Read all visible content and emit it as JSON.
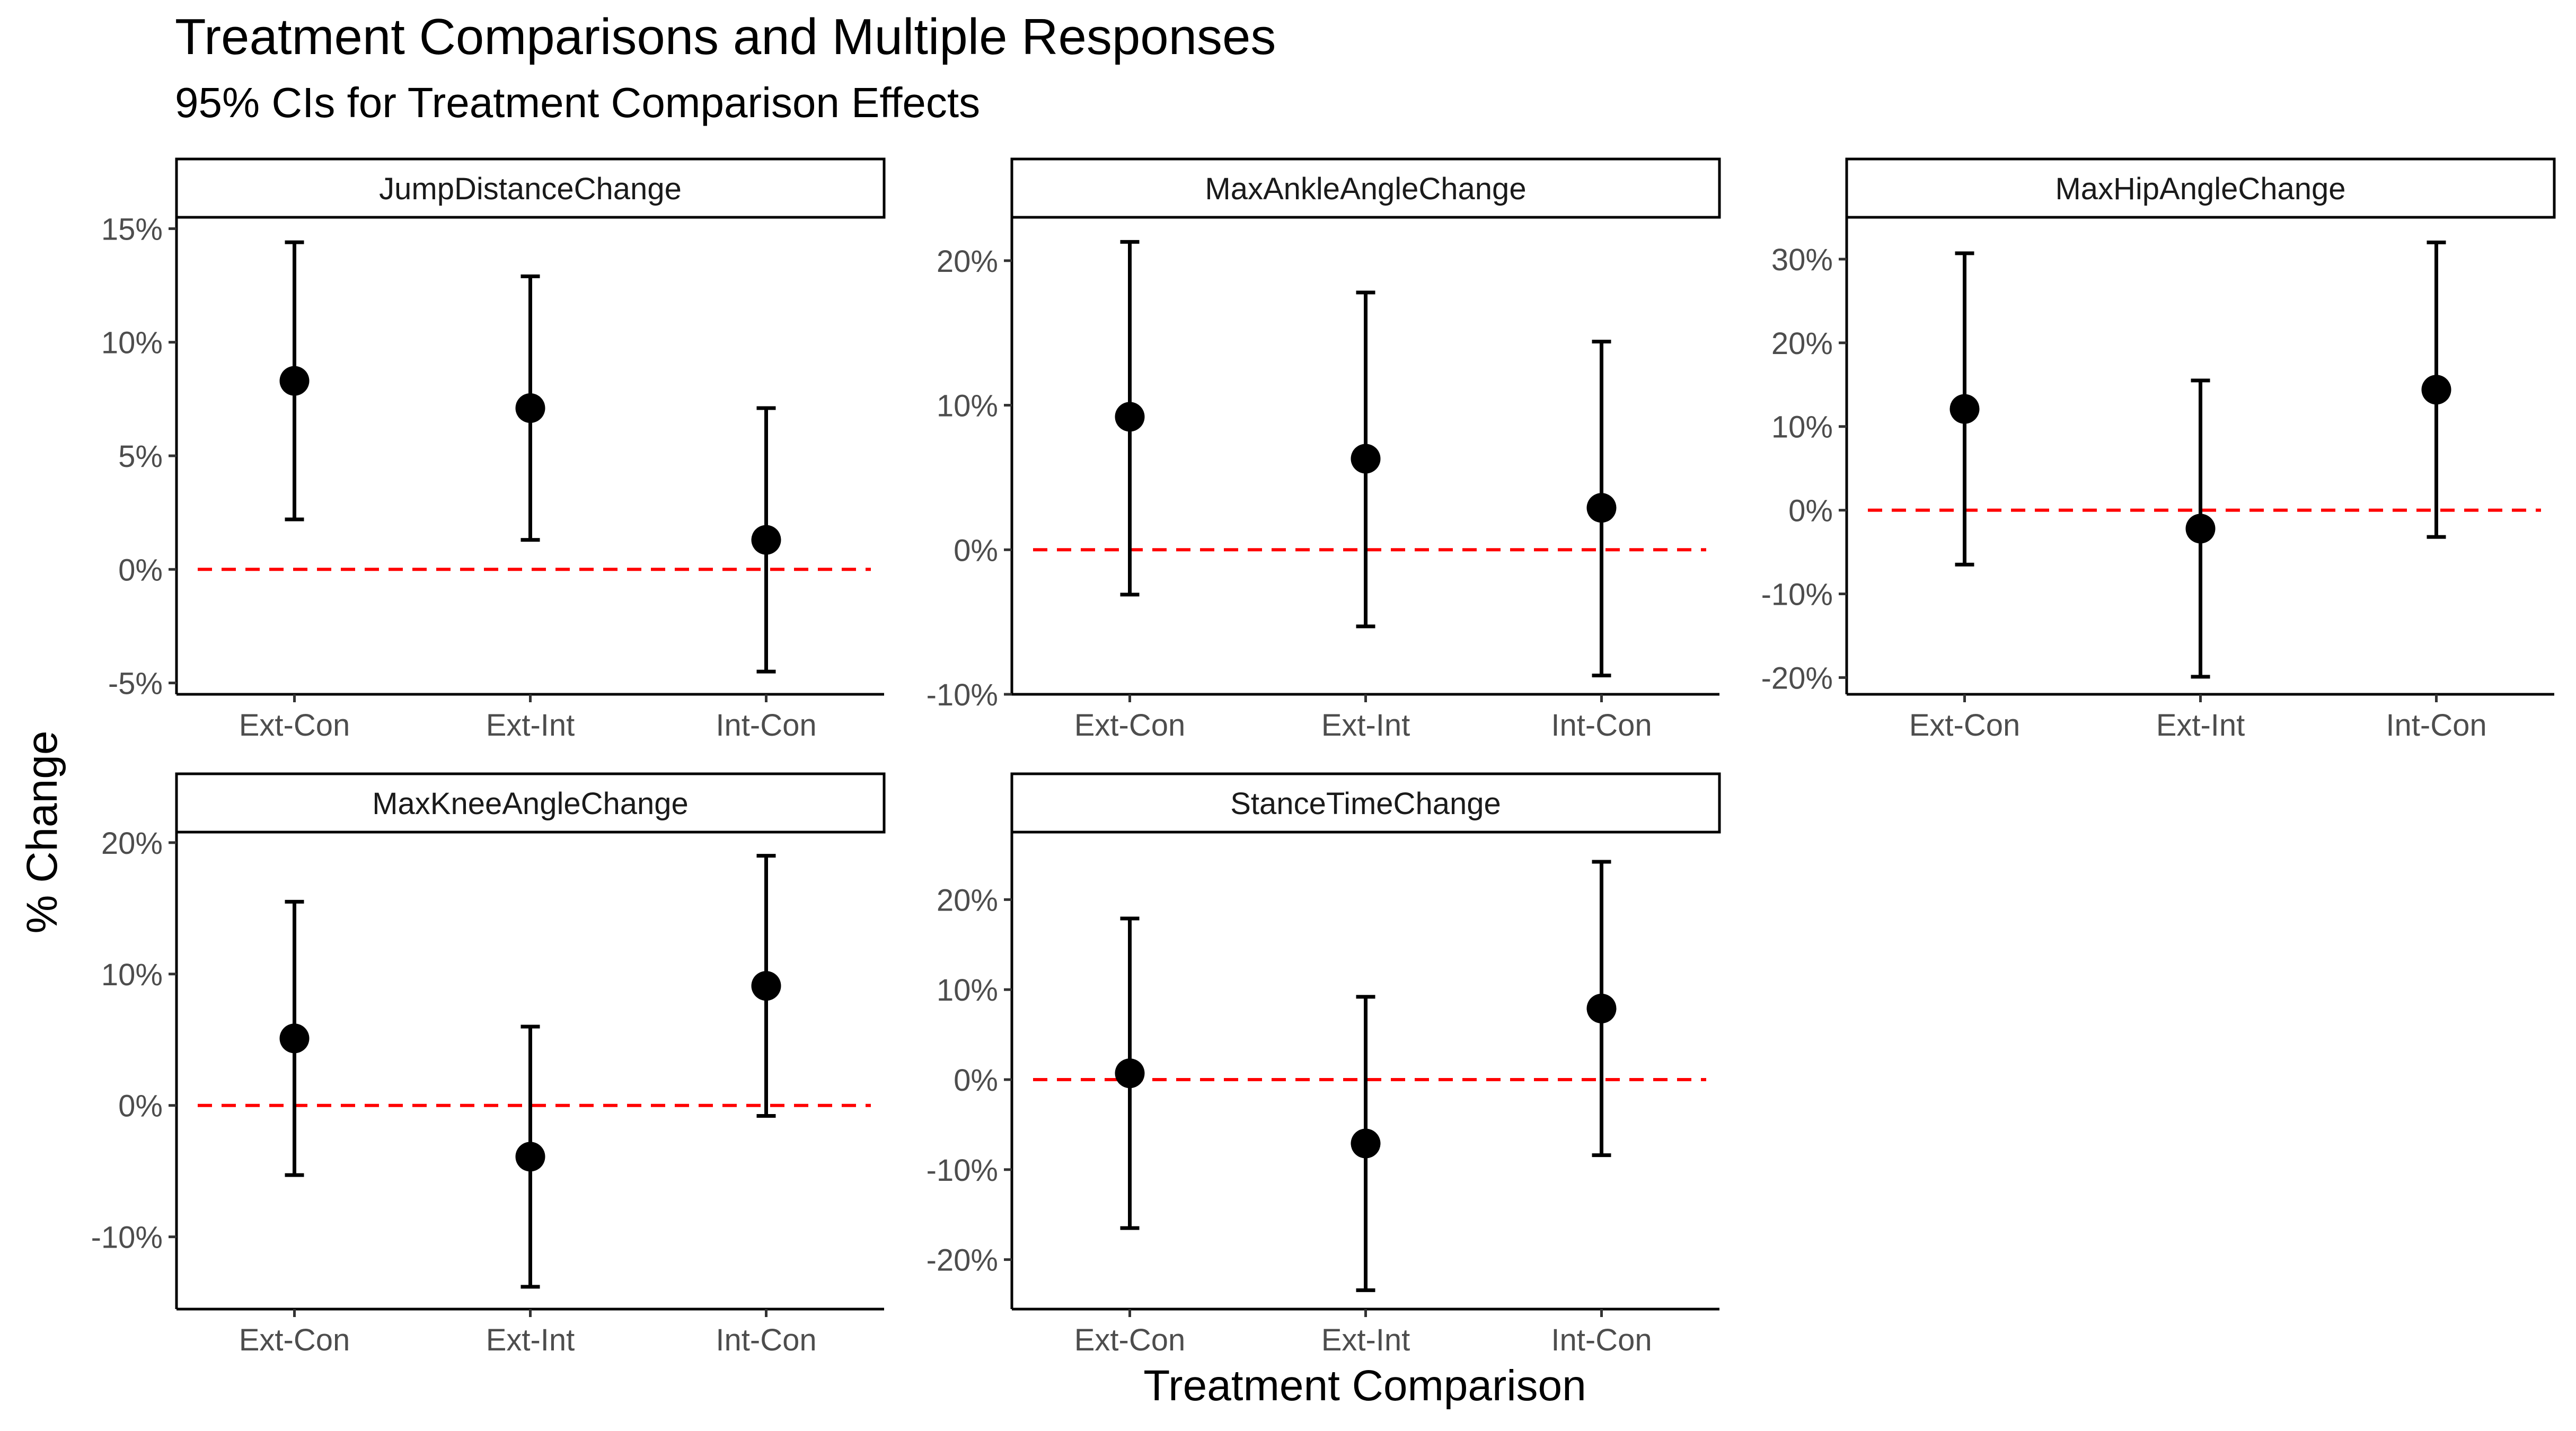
{
  "chart_data": {
    "type": "errorbar",
    "title": "Treatment Comparisons and Multiple Responses",
    "subtitle": "95% CIs for Treatment Comparison Effects",
    "xlabel": "Treatment Comparison",
    "ylabel": "% Change",
    "reference_line": {
      "value": 0,
      "color": "#ff0000",
      "style": "dashed"
    },
    "categories": [
      "Ext-Con",
      "Ext-Int",
      "Int-Con"
    ],
    "panels": [
      {
        "name": "JumpDistanceChange",
        "ylim": [
          -5.5,
          15.5
        ],
        "yticks": [
          -5,
          0,
          5,
          10,
          15
        ],
        "ytick_labels": [
          "-5%",
          "0%",
          "5%",
          "10%",
          "15%"
        ],
        "points": [
          {
            "category": "Ext-Con",
            "estimate": 8.3,
            "lower": 2.2,
            "upper": 14.4
          },
          {
            "category": "Ext-Int",
            "estimate": 7.1,
            "lower": 1.3,
            "upper": 12.9
          },
          {
            "category": "Int-Con",
            "estimate": 1.3,
            "lower": -4.5,
            "upper": 7.1
          }
        ]
      },
      {
        "name": "MaxAnkleAngleChange",
        "ylim": [
          -10,
          23
        ],
        "yticks": [
          -10,
          0,
          10,
          20
        ],
        "ytick_labels": [
          "-10%",
          "0%",
          "10%",
          "20%"
        ],
        "points": [
          {
            "category": "Ext-Con",
            "estimate": 9.2,
            "lower": -3.1,
            "upper": 21.3
          },
          {
            "category": "Ext-Int",
            "estimate": 6.3,
            "lower": -5.3,
            "upper": 17.8
          },
          {
            "category": "Int-Con",
            "estimate": 2.9,
            "lower": -8.7,
            "upper": 14.4
          }
        ]
      },
      {
        "name": "MaxHipAngleChange",
        "ylim": [
          -22,
          35
        ],
        "yticks": [
          -20,
          -10,
          0,
          10,
          20,
          30
        ],
        "ytick_labels": [
          "-20%",
          "-10%",
          "0%",
          "10%",
          "20%",
          "30%"
        ],
        "points": [
          {
            "category": "Ext-Con",
            "estimate": 12.1,
            "lower": -6.5,
            "upper": 30.7
          },
          {
            "category": "Ext-Int",
            "estimate": -2.2,
            "lower": -19.9,
            "upper": 15.5
          },
          {
            "category": "Int-Con",
            "estimate": 14.4,
            "lower": -3.2,
            "upper": 32.0
          }
        ]
      },
      {
        "name": "MaxKneeAngleChange",
        "ylim": [
          -15.5,
          20.8
        ],
        "yticks": [
          -10,
          0,
          10,
          20
        ],
        "ytick_labels": [
          "-10%",
          "0%",
          "10%",
          "20%"
        ],
        "points": [
          {
            "category": "Ext-Con",
            "estimate": 5.1,
            "lower": -5.3,
            "upper": 15.5
          },
          {
            "category": "Ext-Int",
            "estimate": -3.9,
            "lower": -13.8,
            "upper": 6.0
          },
          {
            "category": "Int-Con",
            "estimate": 9.1,
            "lower": -0.8,
            "upper": 19.0
          }
        ]
      },
      {
        "name": "StanceTimeChange",
        "ylim": [
          -25.5,
          27.5
        ],
        "yticks": [
          -20,
          -10,
          0,
          10,
          20
        ],
        "ytick_labels": [
          "-20%",
          "-10%",
          "0%",
          "10%",
          "20%"
        ],
        "points": [
          {
            "category": "Ext-Con",
            "estimate": 0.7,
            "lower": -16.5,
            "upper": 17.9
          },
          {
            "category": "Ext-Int",
            "estimate": -7.1,
            "lower": -23.4,
            "upper": 9.2
          },
          {
            "category": "Int-Con",
            "estimate": 7.9,
            "lower": -8.4,
            "upper": 24.2
          }
        ]
      }
    ]
  }
}
